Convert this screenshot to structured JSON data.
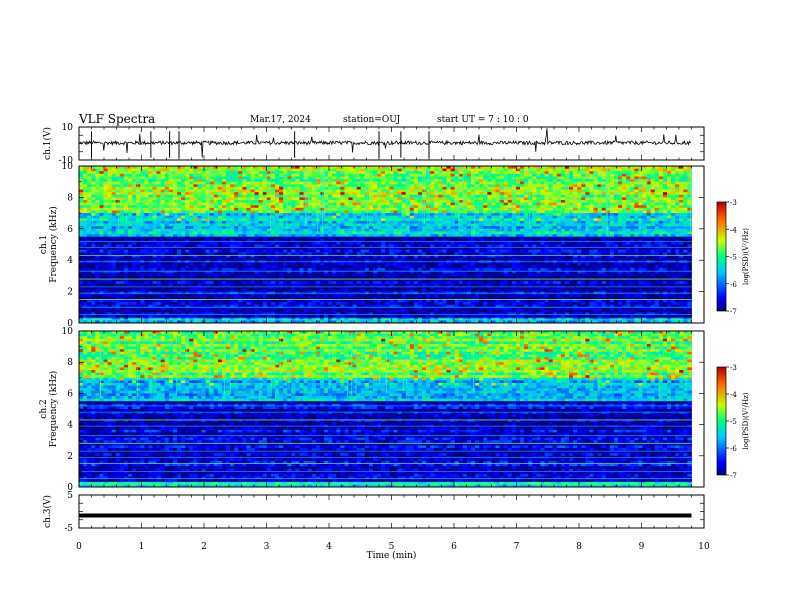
{
  "header": {
    "title": "VLF Spectra",
    "date": "Mar.17, 2024",
    "station": "station=OUJ",
    "start": "start  UT =  7 : 10 : 0"
  },
  "colorbar": {
    "label": "log(PSD)(V²/Hz)",
    "ticks": [
      "-3",
      "-4",
      "-5",
      "-6",
      "-7"
    ]
  },
  "chart_data": [
    {
      "type": "line",
      "name": "ch1-waveform",
      "ylabel": "ch.1(V)",
      "ylim": [
        -10,
        10
      ],
      "yticks": [
        "10",
        "-10"
      ],
      "xlim": [
        0,
        10
      ],
      "approx_baseline": 0.4,
      "grid": false
    },
    {
      "type": "heatmap",
      "name": "ch1-spectrogram",
      "ylabel": "ch.1 Frequency (kHz)",
      "ylim": [
        0,
        10
      ],
      "yticks": [
        "0",
        "2",
        "4",
        "6",
        "8",
        "10"
      ],
      "xlim": [
        0,
        10
      ],
      "data_end_min": 9.8,
      "colormap": "jet",
      "zlim": [
        -7,
        -3
      ],
      "bands_khz": [
        {
          "from": 0,
          "to": 0.3,
          "level": -5.5
        },
        {
          "from": 0.3,
          "to": 5.5,
          "level": -6.8
        },
        {
          "from": 5.5,
          "to": 7.0,
          "level": -5.5
        },
        {
          "from": 7.0,
          "to": 10,
          "level": -4.6
        }
      ]
    },
    {
      "type": "heatmap",
      "name": "ch2-spectrogram",
      "ylabel": "ch.2 Frequency (kHz)",
      "ylim": [
        0,
        10
      ],
      "yticks": [
        "0",
        "2",
        "4",
        "6",
        "8",
        "10"
      ],
      "xlim": [
        0,
        10
      ],
      "data_end_min": 9.8,
      "colormap": "jet",
      "zlim": [
        -7,
        -3
      ],
      "bands_khz": [
        {
          "from": 0,
          "to": 0.3,
          "level": -5.5
        },
        {
          "from": 0.3,
          "to": 5.5,
          "level": -6.7
        },
        {
          "from": 5.5,
          "to": 7.0,
          "level": -5.6
        },
        {
          "from": 7.0,
          "to": 10,
          "level": -4.7
        }
      ]
    },
    {
      "type": "line",
      "name": "ch3-waveform",
      "ylabel": "ch.3(V)",
      "ylim": [
        -5,
        5
      ],
      "yticks": [
        "5",
        "-5"
      ],
      "xlim": [
        0,
        10
      ],
      "approx_baseline": -1.2,
      "grid": false
    }
  ],
  "xaxis": {
    "label": "Time  (min)",
    "ticks": [
      "0",
      "1",
      "2",
      "3",
      "4",
      "5",
      "6",
      "7",
      "8",
      "9",
      "10"
    ]
  }
}
